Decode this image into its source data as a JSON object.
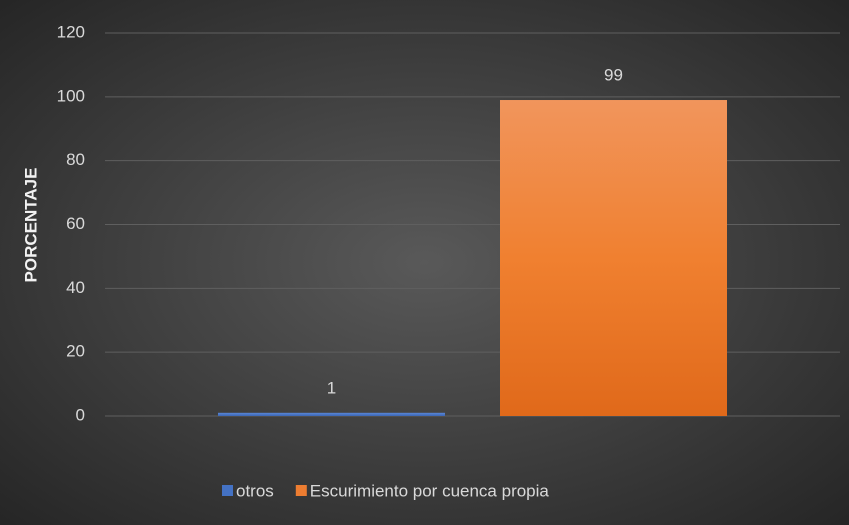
{
  "chart_data": {
    "type": "bar",
    "y_label": "PORCENTAJE",
    "categories": [
      null
    ],
    "series": [
      {
        "name": "otros",
        "color": "#4472c4",
        "values": [
          1
        ]
      },
      {
        "name": "Escurimiento por cuenca propia",
        "color": "#ed7d31",
        "values": [
          99
        ]
      }
    ],
    "ylim": [
      0,
      120
    ],
    "yticks": [
      0,
      20,
      40,
      60,
      80,
      100,
      120
    ],
    "grid": true,
    "legend": "bottom"
  }
}
